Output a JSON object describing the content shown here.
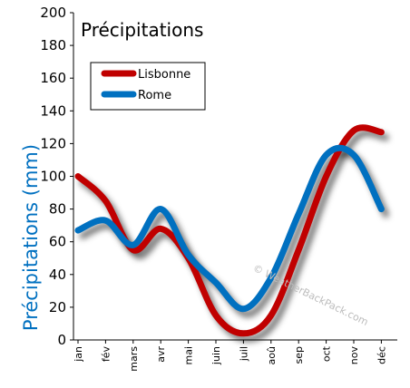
{
  "chart_data": {
    "type": "line",
    "title": "Précipitations",
    "ylabel": "Précipitations (mm)",
    "xlabel": "",
    "ylim": [
      0,
      200
    ],
    "yticks": [
      0,
      20,
      40,
      60,
      80,
      100,
      120,
      140,
      160,
      180,
      200
    ],
    "categories": [
      "jan",
      "fév",
      "mars",
      "avr",
      "mai",
      "juin",
      "juil",
      "aoû",
      "sep",
      "oct",
      "nov",
      "déc"
    ],
    "series": [
      {
        "name": "Lisbonne",
        "color": "#c00000",
        "values": [
          100,
          85,
          55,
          68,
          50,
          15,
          4,
          15,
          55,
          100,
          128,
          127
        ]
      },
      {
        "name": "Rome",
        "color": "#0070c0",
        "values": [
          67,
          73,
          58,
          80,
          52,
          35,
          19,
          38,
          77,
          113,
          113,
          80
        ]
      }
    ],
    "legend_position": "top-left",
    "grid": false,
    "watermark": "© WeatherBackPack.com"
  }
}
